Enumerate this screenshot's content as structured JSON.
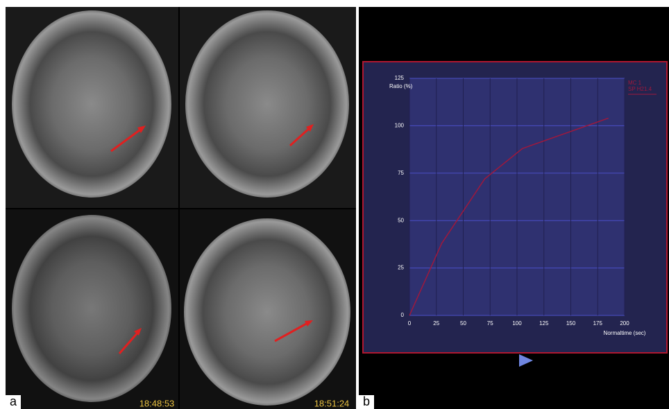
{
  "panels": {
    "left_label": "a",
    "right_label": "b",
    "timestamps": [
      "18:48:53",
      "18:51:24"
    ]
  },
  "chart_data": {
    "type": "line",
    "y_label": "Ratio (%)",
    "x_label": "Normaltime (sec)",
    "x": [
      0,
      30,
      70,
      105,
      185
    ],
    "series": [
      {
        "name": "MC 1",
        "color": "#a0183c",
        "values": [
          0,
          38,
          72,
          88,
          104
        ]
      }
    ],
    "legend_note": "SP H21.4",
    "xlim": [
      0,
      200
    ],
    "xticks": [
      0,
      25,
      50,
      75,
      100,
      125,
      150,
      175,
      200
    ],
    "ylim": [
      0,
      125
    ],
    "yticks": [
      0,
      25,
      50,
      75,
      100,
      125
    ],
    "grid": true
  }
}
